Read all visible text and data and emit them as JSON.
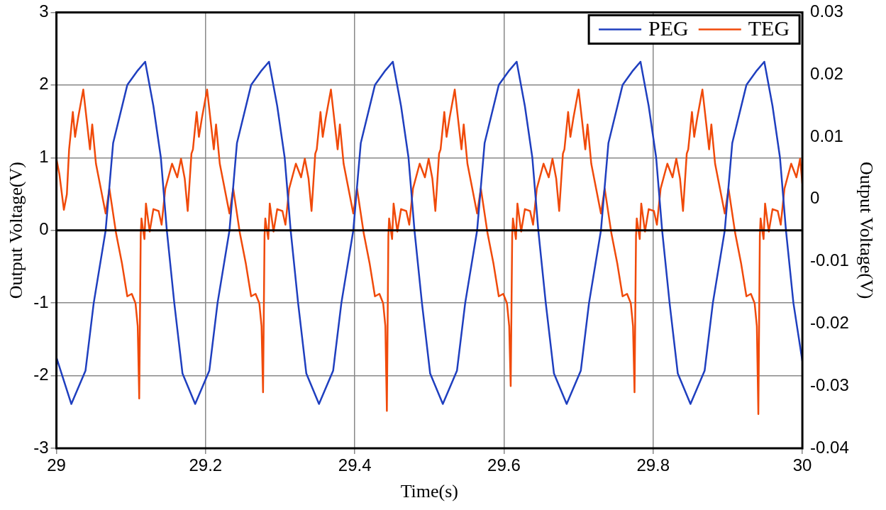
{
  "chart_data": {
    "type": "line",
    "xlabel": "Time(s)",
    "ylabel": "Output Voltage(V)",
    "y2label": "Output Voltage(V)",
    "xlim": [
      29,
      30
    ],
    "xticks": [
      29,
      29.2,
      29.4,
      29.6,
      29.8,
      30
    ],
    "ylim": [
      -3,
      3
    ],
    "yticks": [
      -3,
      -2,
      -1,
      0,
      1,
      2,
      3
    ],
    "y2lim": [
      -0.04,
      0.03
    ],
    "y2ticks": [
      -0.04,
      -0.03,
      -0.02,
      -0.01,
      0,
      0.01,
      0.02,
      0.03
    ],
    "grid": true,
    "legend": "top right",
    "marker": "none",
    "line_style": "solid",
    "ref_lines": [
      {
        "axis": "y",
        "value": 0,
        "color": "#000000"
      }
    ],
    "series": [
      {
        "name": "PEG",
        "color": "#1f3fbf",
        "x": [
          29.0,
          29.02,
          29.039,
          29.05,
          29.066,
          29.076,
          29.095,
          29.109,
          29.119,
          29.13,
          29.14,
          29.148,
          29.158,
          29.169,
          29.186,
          29.205,
          29.216,
          29.232,
          29.242,
          29.261,
          29.275,
          29.285,
          29.296,
          29.306,
          29.314,
          29.324,
          29.335,
          29.352,
          29.371,
          29.382,
          29.398,
          29.408,
          29.427,
          29.441,
          29.451,
          29.462,
          29.472,
          29.48,
          29.49,
          29.501,
          29.518,
          29.537,
          29.548,
          29.564,
          29.574,
          29.593,
          29.607,
          29.617,
          29.628,
          29.638,
          29.646,
          29.656,
          29.667,
          29.684,
          29.703,
          29.714,
          29.73,
          29.74,
          29.759,
          29.773,
          29.783,
          29.794,
          29.804,
          29.812,
          29.822,
          29.833,
          29.85,
          29.869,
          29.88,
          29.896,
          29.906,
          29.925,
          29.939,
          29.949,
          29.96,
          29.97,
          29.978,
          29.988,
          30.0
        ],
        "values": [
          -1.75,
          -2.39,
          -1.93,
          -1.0,
          0,
          1.2,
          2.0,
          2.2,
          2.32,
          1.71,
          1.0,
          0,
          -1.0,
          -1.97,
          -2.39,
          -1.93,
          -1.0,
          0,
          1.2,
          2.0,
          2.2,
          2.32,
          1.71,
          1.0,
          0,
          -1.0,
          -1.97,
          -2.39,
          -1.93,
          -1.0,
          0,
          1.2,
          2.0,
          2.2,
          2.32,
          1.71,
          1.0,
          0,
          -1.0,
          -1.97,
          -2.39,
          -1.93,
          -1.0,
          0,
          1.2,
          2.0,
          2.2,
          2.32,
          1.71,
          1.0,
          0,
          -1.0,
          -1.97,
          -2.39,
          -1.93,
          -1.0,
          0,
          1.2,
          2.0,
          2.2,
          2.32,
          1.71,
          1.0,
          0,
          -1.0,
          -1.97,
          -2.39,
          -1.93,
          -1.0,
          0,
          1.2,
          2.0,
          2.2,
          2.32,
          1.71,
          1.0,
          0,
          -1.0,
          -1.8
        ]
      },
      {
        "name": "TEG",
        "color": "#f04a0a",
        "axis": "y2",
        "x": [
          29.0,
          29.004,
          29.01,
          29.014,
          29.017,
          29.022,
          29.025,
          29.029,
          29.036,
          29.045,
          29.048,
          29.053,
          29.066,
          29.071,
          29.08,
          29.088,
          29.095,
          29.101,
          29.106,
          29.109,
          29.111,
          29.113,
          29.114,
          29.118,
          29.12,
          29.125,
          29.13,
          29.137,
          29.141,
          29.146,
          29.155,
          29.162,
          29.167,
          29.172,
          29.176,
          29.181,
          29.183,
          29.188,
          29.191,
          29.195,
          29.202,
          29.211,
          29.214,
          29.219,
          29.232,
          29.237,
          29.246,
          29.254,
          29.261,
          29.267,
          29.272,
          29.275,
          29.277,
          29.279,
          29.28,
          29.284,
          29.286,
          29.291,
          29.296,
          29.303,
          29.307,
          29.312,
          29.321,
          29.328,
          29.333,
          29.338,
          29.342,
          29.347,
          29.349,
          29.354,
          29.357,
          29.361,
          29.368,
          29.377,
          29.38,
          29.385,
          29.398,
          29.403,
          29.412,
          29.42,
          29.427,
          29.433,
          29.438,
          29.441,
          29.443,
          29.445,
          29.446,
          29.45,
          29.452,
          29.457,
          29.462,
          29.469,
          29.473,
          29.478,
          29.487,
          29.494,
          29.499,
          29.504,
          29.508,
          29.513,
          29.515,
          29.52,
          29.523,
          29.527,
          29.534,
          29.543,
          29.546,
          29.551,
          29.564,
          29.569,
          29.578,
          29.586,
          29.593,
          29.599,
          29.604,
          29.607,
          29.609,
          29.611,
          29.612,
          29.616,
          29.618,
          29.623,
          29.628,
          29.635,
          29.639,
          29.644,
          29.653,
          29.66,
          29.665,
          29.67,
          29.674,
          29.679,
          29.681,
          29.686,
          29.689,
          29.693,
          29.7,
          29.709,
          29.712,
          29.717,
          29.73,
          29.735,
          29.744,
          29.752,
          29.759,
          29.765,
          29.77,
          29.773,
          29.775,
          29.777,
          29.778,
          29.782,
          29.784,
          29.789,
          29.794,
          29.801,
          29.805,
          29.81,
          29.819,
          29.826,
          29.831,
          29.836,
          29.84,
          29.845,
          29.847,
          29.852,
          29.855,
          29.859,
          29.866,
          29.875,
          29.878,
          29.883,
          29.896,
          29.901,
          29.91,
          29.918,
          29.925,
          29.931,
          29.936,
          29.939,
          29.941,
          29.943,
          29.944,
          29.948,
          29.95,
          29.955,
          29.96,
          29.967,
          29.971,
          29.976,
          29.985,
          29.992,
          29.997,
          30.0
        ],
        "values": [
          0.0065,
          0.004,
          -0.0017,
          0.0008,
          0.008,
          0.014,
          0.01,
          0.013,
          0.0176,
          0.008,
          0.012,
          0.0057,
          -0.0023,
          0.0017,
          -0.0055,
          -0.0104,
          -0.0156,
          -0.0152,
          -0.0167,
          -0.0204,
          -0.032,
          -0.0059,
          -0.0031,
          -0.0064,
          -0.0007,
          -0.0052,
          -0.0016,
          -0.0019,
          -0.0041,
          0.0017,
          0.0057,
          0.0035,
          0.0065,
          0.0033,
          -0.0019,
          0.0073,
          0.008,
          0.014,
          0.01,
          0.013,
          0.0176,
          0.008,
          0.012,
          0.0057,
          -0.0023,
          0.0017,
          -0.0055,
          -0.0104,
          -0.0156,
          -0.0152,
          -0.0167,
          -0.0204,
          -0.031,
          -0.0059,
          -0.0031,
          -0.0064,
          -0.0007,
          -0.0052,
          -0.0016,
          -0.0019,
          -0.0041,
          0.0017,
          0.0057,
          0.0035,
          0.0065,
          0.0033,
          -0.0019,
          0.0073,
          0.008,
          0.014,
          0.01,
          0.013,
          0.0176,
          0.008,
          0.012,
          0.0057,
          -0.0023,
          0.0017,
          -0.0055,
          -0.0104,
          -0.0156,
          -0.0152,
          -0.0167,
          -0.0204,
          -0.034,
          -0.0059,
          -0.0031,
          -0.0064,
          -0.0007,
          -0.0052,
          -0.0016,
          -0.0019,
          -0.0041,
          0.0017,
          0.0057,
          0.0035,
          0.0065,
          0.0033,
          -0.0019,
          0.0073,
          0.008,
          0.014,
          0.01,
          0.013,
          0.0176,
          0.008,
          0.012,
          0.0057,
          -0.0023,
          0.0017,
          -0.0055,
          -0.0104,
          -0.0156,
          -0.0152,
          -0.0167,
          -0.0204,
          -0.03,
          -0.0059,
          -0.0031,
          -0.0064,
          -0.0007,
          -0.0052,
          -0.0016,
          -0.0019,
          -0.0041,
          0.0017,
          0.0057,
          0.0035,
          0.0065,
          0.0033,
          -0.0019,
          0.0073,
          0.008,
          0.014,
          0.01,
          0.013,
          0.0176,
          0.008,
          0.012,
          0.0057,
          -0.0023,
          0.0017,
          -0.0055,
          -0.0104,
          -0.0156,
          -0.0152,
          -0.0167,
          -0.0204,
          -0.031,
          -0.0059,
          -0.0031,
          -0.0064,
          -0.0007,
          -0.0052,
          -0.0016,
          -0.0019,
          -0.0041,
          0.0017,
          0.0057,
          0.0035,
          0.0065,
          0.0033,
          -0.0019,
          0.0073,
          0.008,
          0.014,
          0.01,
          0.013,
          0.0176,
          0.008,
          0.012,
          0.0057,
          -0.0023,
          0.0017,
          -0.0055,
          -0.0104,
          -0.0156,
          -0.0152,
          -0.0167,
          -0.0204,
          -0.0345,
          -0.0059,
          -0.0031,
          -0.0064,
          -0.0007,
          -0.0052,
          -0.0016,
          -0.0019,
          -0.0041,
          0.0017,
          0.0057,
          0.0035,
          0.0065,
          0.0025
        ]
      }
    ]
  }
}
